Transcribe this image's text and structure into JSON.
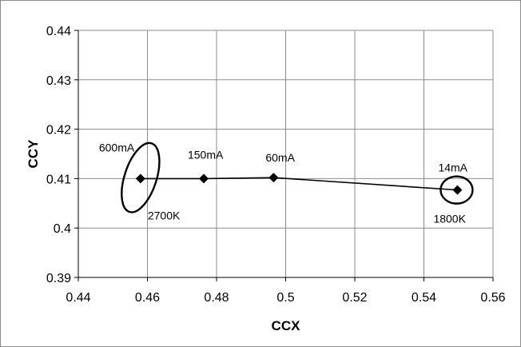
{
  "chart_data": {
    "type": "scatter",
    "title": "",
    "xlabel": "CCX",
    "ylabel": "CCY",
    "xlim": [
      0.44,
      0.56
    ],
    "ylim": [
      0.39,
      0.44
    ],
    "xticks": [
      "0.44",
      "0.46",
      "0.48",
      "0.5",
      "0.52",
      "0.54",
      "0.56"
    ],
    "yticks": [
      "0.39",
      "0.4",
      "0.41",
      "0.42",
      "0.43",
      "0.44"
    ],
    "grid": true,
    "legend": "none",
    "series": [
      {
        "x": [
          0.458,
          0.4763,
          0.4965,
          0.5497
        ],
        "y": [
          0.41,
          0.41,
          0.4102,
          0.4077
        ],
        "point_labels": [
          "600mA",
          "150mA",
          "60mA",
          "14mA"
        ]
      }
    ],
    "annotations": [
      {
        "text": "2700K",
        "x": 0.458,
        "y": 0.41
      },
      {
        "text": "1800K",
        "x": 0.5497,
        "y": 0.4077
      }
    ],
    "colors": {
      "series": "#000000",
      "grid": "#8c8c8c"
    }
  }
}
